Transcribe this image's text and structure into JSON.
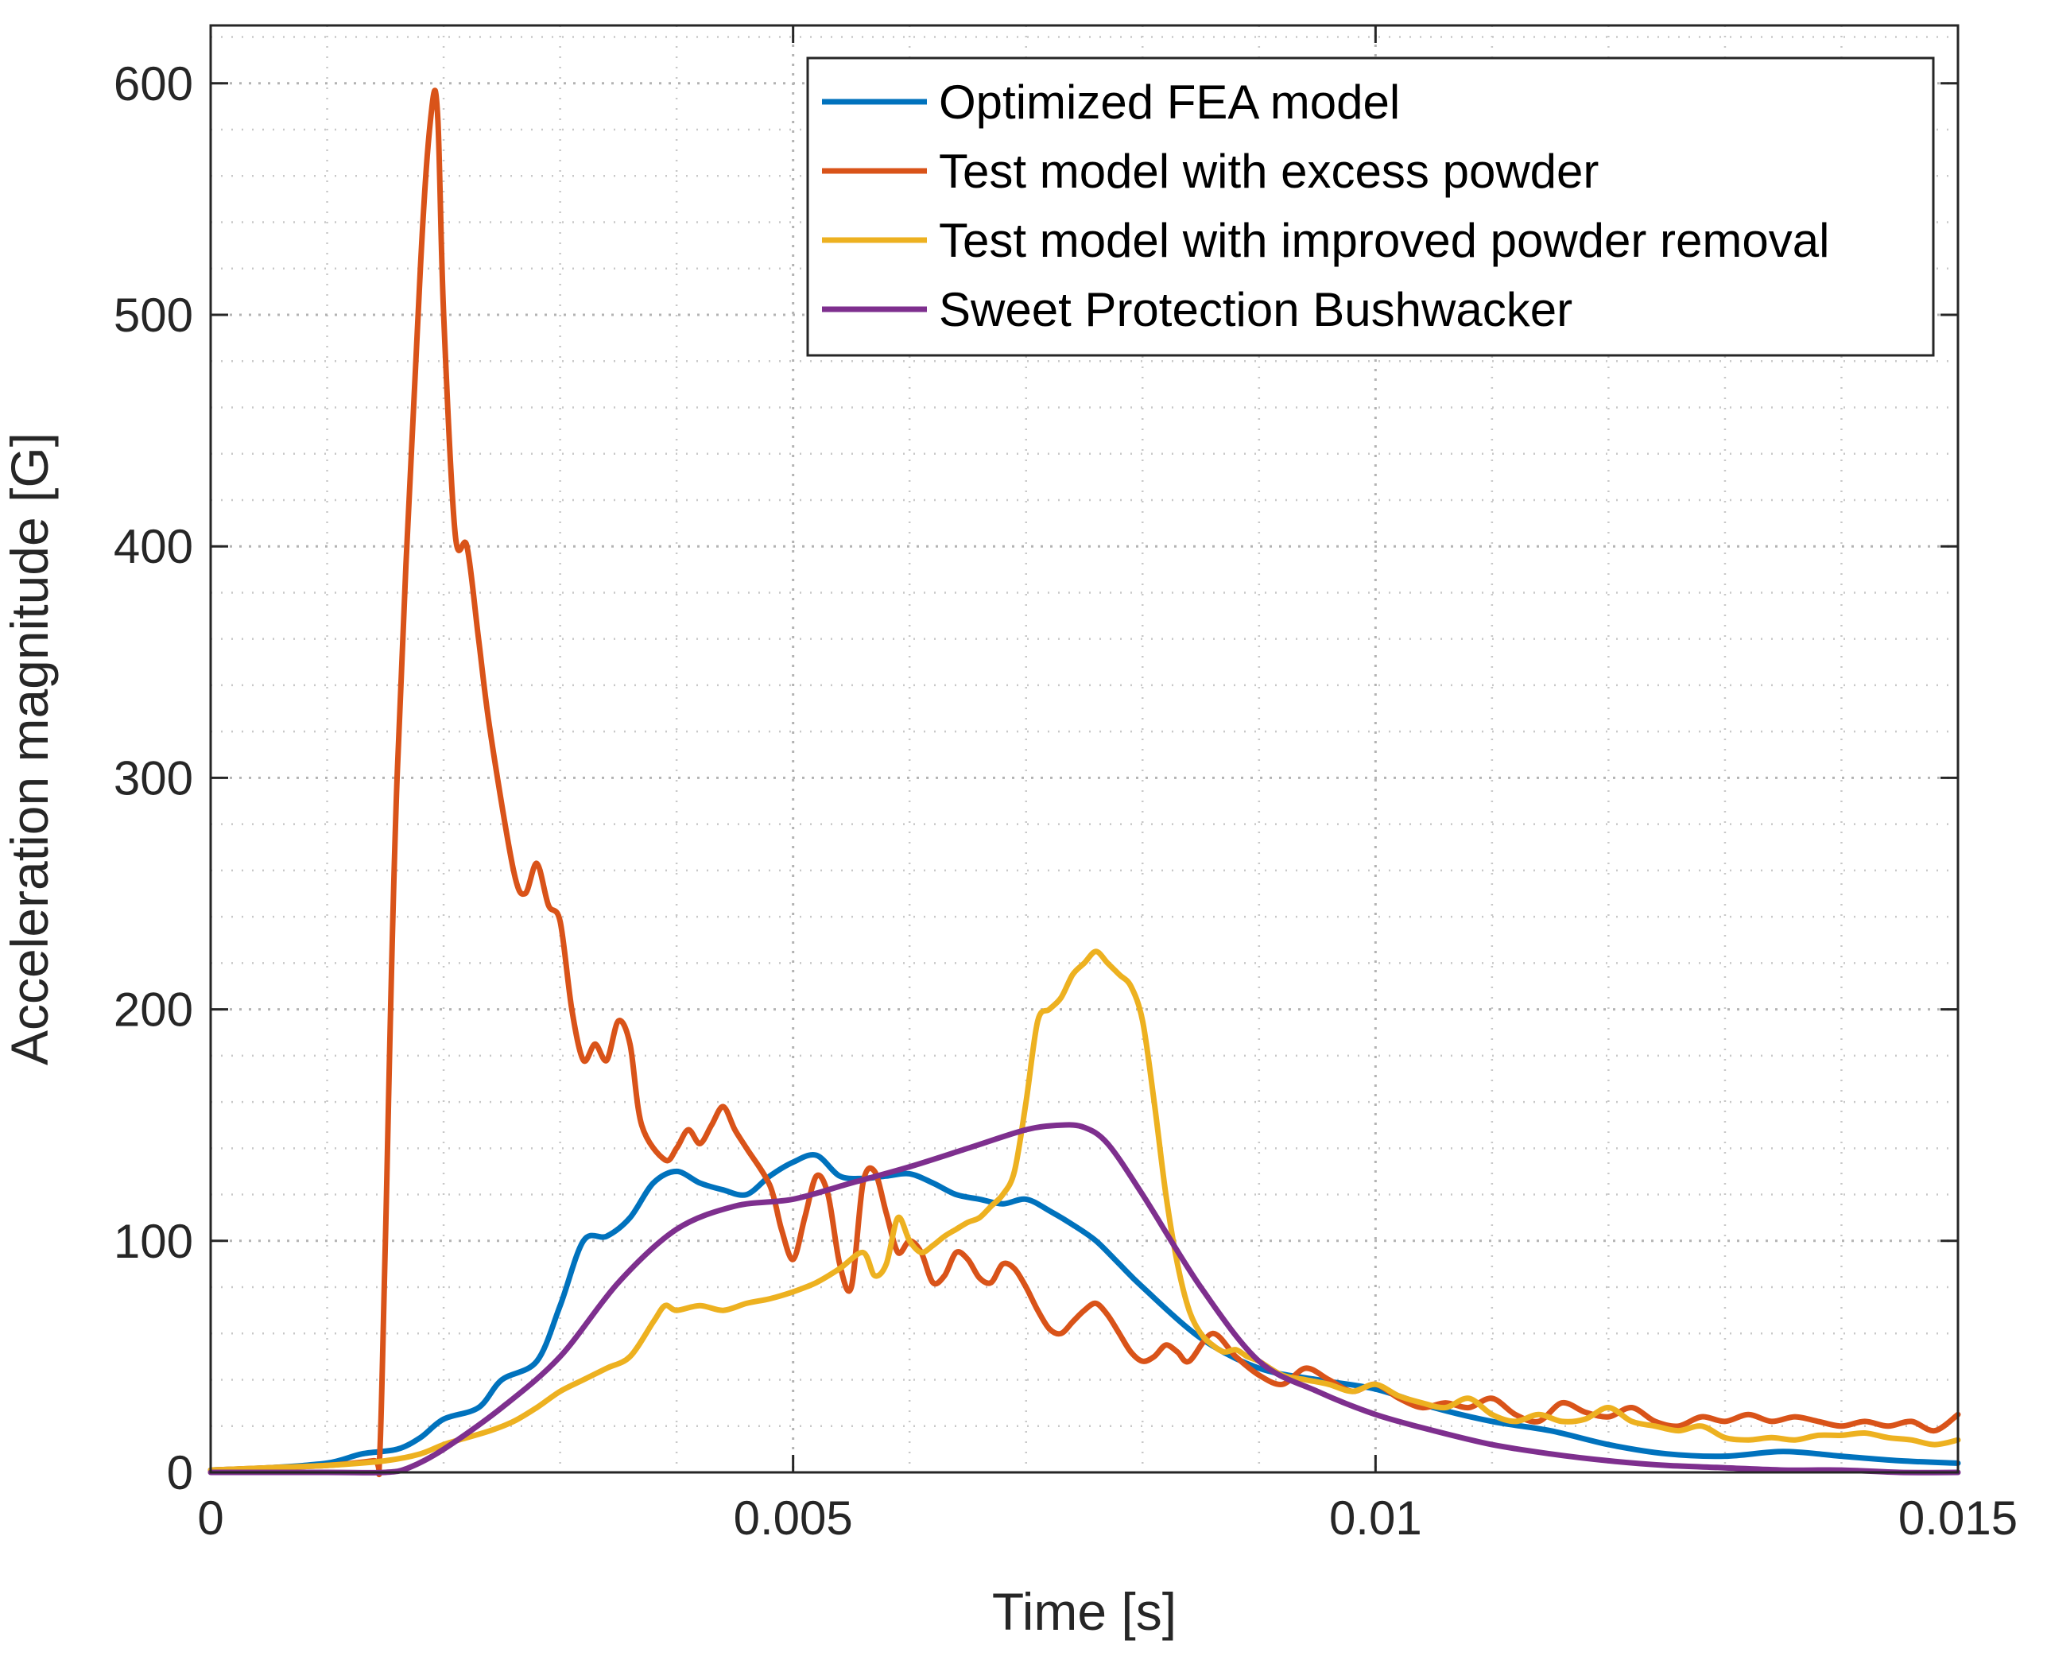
{
  "chart_data": {
    "type": "line",
    "title": "",
    "xlabel": "Time [s]",
    "ylabel": "Acceleration magnitude [G]",
    "xlim": [
      0,
      0.015
    ],
    "ylim": [
      0,
      625
    ],
    "xticks": [
      0,
      0.005,
      0.01,
      0.015
    ],
    "xtick_labels": [
      "0",
      "0.005",
      "0.01",
      "0.015"
    ],
    "yticks": [
      0,
      100,
      200,
      300,
      400,
      500,
      600
    ],
    "ytick_labels": [
      "0",
      "100",
      "200",
      "300",
      "400",
      "500",
      "600"
    ],
    "grid": true,
    "minor_grid": true,
    "legend_position": "top-right",
    "series": [
      {
        "name": "Optimized FEA model",
        "color": "#0072BD",
        "x": [
          0,
          0.0005,
          0.001,
          0.0013,
          0.0016,
          0.0018,
          0.002,
          0.0023,
          0.0025,
          0.0028,
          0.003,
          0.0032,
          0.0034,
          0.0036,
          0.0038,
          0.004,
          0.0042,
          0.0044,
          0.0046,
          0.0048,
          0.005,
          0.0052,
          0.0054,
          0.0056,
          0.0058,
          0.006,
          0.0062,
          0.0064,
          0.0066,
          0.0068,
          0.007,
          0.0072,
          0.0074,
          0.0076,
          0.0078,
          0.008,
          0.0085,
          0.009,
          0.0095,
          0.01,
          0.0105,
          0.011,
          0.0115,
          0.012,
          0.0125,
          0.013,
          0.0135,
          0.014,
          0.0145,
          0.015
        ],
        "y": [
          1,
          2,
          4,
          8,
          10,
          15,
          23,
          28,
          40,
          48,
          72,
          100,
          102,
          110,
          125,
          130,
          125,
          122,
          120,
          128,
          134,
          137,
          128,
          127,
          128,
          129,
          125,
          120,
          118,
          116,
          118,
          113,
          107,
          100,
          90,
          80,
          58,
          45,
          40,
          36,
          28,
          22,
          18,
          12,
          8,
          7,
          9,
          7,
          5,
          4
        ]
      },
      {
        "name": "Test model with excess powder",
        "color": "#D95319",
        "x": [
          0,
          0.0005,
          0.001,
          0.0014,
          0.00145,
          0.0015,
          0.0016,
          0.0018,
          0.0019,
          0.00195,
          0.002,
          0.0021,
          0.0022,
          0.0023,
          0.0024,
          0.0026,
          0.0027,
          0.0028,
          0.0029,
          0.003,
          0.0031,
          0.0032,
          0.0033,
          0.0034,
          0.0035,
          0.0036,
          0.0037,
          0.0039,
          0.004,
          0.0041,
          0.0042,
          0.0043,
          0.0044,
          0.0045,
          0.0046,
          0.0048,
          0.0049,
          0.005,
          0.0051,
          0.0052,
          0.0053,
          0.0054,
          0.0055,
          0.0056,
          0.0057,
          0.0058,
          0.0059,
          0.006,
          0.0061,
          0.0062,
          0.0063,
          0.0064,
          0.0065,
          0.0066,
          0.0067,
          0.0068,
          0.0069,
          0.007,
          0.0071,
          0.0072,
          0.0073,
          0.0074,
          0.0075,
          0.0076,
          0.0077,
          0.0078,
          0.0079,
          0.008,
          0.0081,
          0.0082,
          0.0083,
          0.0084,
          0.0086,
          0.0088,
          0.009,
          0.0092,
          0.0094,
          0.0096,
          0.0098,
          0.01,
          0.0102,
          0.0104,
          0.0106,
          0.0108,
          0.011,
          0.0112,
          0.0114,
          0.0116,
          0.0118,
          0.012,
          0.0122,
          0.0124,
          0.0126,
          0.0128,
          0.013,
          0.0132,
          0.0134,
          0.0136,
          0.0138,
          0.014,
          0.0142,
          0.0144,
          0.0146,
          0.0148,
          0.015
        ],
        "y": [
          1,
          2,
          3,
          5,
          6,
          100,
          300,
          520,
          590,
          585,
          500,
          405,
          400,
          360,
          320,
          260,
          250,
          263,
          245,
          238,
          200,
          178,
          185,
          178,
          195,
          185,
          150,
          135,
          140,
          148,
          142,
          150,
          158,
          148,
          140,
          124,
          105,
          92,
          110,
          128,
          120,
          90,
          80,
          125,
          130,
          112,
          95,
          100,
          95,
          82,
          85,
          95,
          92,
          84,
          82,
          90,
          88,
          80,
          70,
          62,
          60,
          65,
          70,
          73,
          68,
          60,
          52,
          48,
          50,
          55,
          52,
          48,
          60,
          50,
          42,
          38,
          45,
          40,
          35,
          38,
          32,
          28,
          30,
          28,
          32,
          25,
          22,
          30,
          26,
          24,
          28,
          22,
          20,
          24,
          22,
          25,
          22,
          24,
          22,
          20,
          22,
          20,
          22,
          18,
          25
        ]
      },
      {
        "name": "Test model with improved powder removal",
        "color": "#EDB120",
        "x": [
          0,
          0.0005,
          0.001,
          0.0015,
          0.0018,
          0.002,
          0.0022,
          0.0024,
          0.0026,
          0.0028,
          0.003,
          0.0032,
          0.0034,
          0.0036,
          0.0038,
          0.0039,
          0.004,
          0.0042,
          0.0044,
          0.0046,
          0.0048,
          0.005,
          0.0052,
          0.0054,
          0.0056,
          0.0057,
          0.0058,
          0.0059,
          0.006,
          0.0061,
          0.0062,
          0.0063,
          0.0064,
          0.0065,
          0.0066,
          0.0067,
          0.0068,
          0.0069,
          0.007,
          0.0071,
          0.0072,
          0.0073,
          0.0074,
          0.0075,
          0.0076,
          0.0077,
          0.0078,
          0.0079,
          0.008,
          0.0081,
          0.0082,
          0.0083,
          0.0084,
          0.0085,
          0.0086,
          0.0087,
          0.0088,
          0.0089,
          0.009,
          0.0092,
          0.0094,
          0.0096,
          0.0098,
          0.01,
          0.0102,
          0.0104,
          0.0106,
          0.0108,
          0.011,
          0.0112,
          0.0114,
          0.0116,
          0.0118,
          0.012,
          0.0122,
          0.0124,
          0.0126,
          0.0128,
          0.013,
          0.0132,
          0.0134,
          0.0136,
          0.0138,
          0.014,
          0.0142,
          0.0144,
          0.0146,
          0.0148,
          0.015
        ],
        "y": [
          1,
          2,
          3,
          5,
          8,
          12,
          15,
          18,
          22,
          28,
          35,
          40,
          45,
          50,
          65,
          72,
          70,
          72,
          70,
          73,
          75,
          78,
          82,
          88,
          95,
          85,
          90,
          110,
          100,
          95,
          98,
          102,
          105,
          108,
          110,
          115,
          120,
          130,
          160,
          195,
          200,
          205,
          215,
          220,
          225,
          220,
          215,
          210,
          195,
          160,
          120,
          90,
          70,
          60,
          55,
          52,
          53,
          50,
          48,
          42,
          40,
          38,
          35,
          38,
          33,
          30,
          28,
          32,
          25,
          22,
          25,
          22,
          23,
          28,
          22,
          20,
          18,
          20,
          15,
          14,
          15,
          14,
          16,
          16,
          17,
          15,
          14,
          12,
          14
        ]
      },
      {
        "name": "Sweet Protection Bushwacker",
        "color": "#7E2F8E",
        "x": [
          0,
          0.001,
          0.0015,
          0.0017,
          0.002,
          0.0025,
          0.003,
          0.0035,
          0.004,
          0.0045,
          0.005,
          0.0055,
          0.006,
          0.0065,
          0.007,
          0.0073,
          0.0075,
          0.0077,
          0.008,
          0.0085,
          0.009,
          0.0095,
          0.01,
          0.0105,
          0.011,
          0.0115,
          0.012,
          0.0125,
          0.013,
          0.0135,
          0.014,
          0.0145,
          0.015
        ],
        "y": [
          0,
          0,
          0,
          2,
          10,
          28,
          50,
          82,
          105,
          115,
          118,
          125,
          132,
          140,
          148,
          150,
          149,
          142,
          120,
          80,
          48,
          35,
          25,
          18,
          12,
          8,
          5,
          3,
          2,
          1,
          1,
          0,
          0
        ]
      }
    ]
  }
}
